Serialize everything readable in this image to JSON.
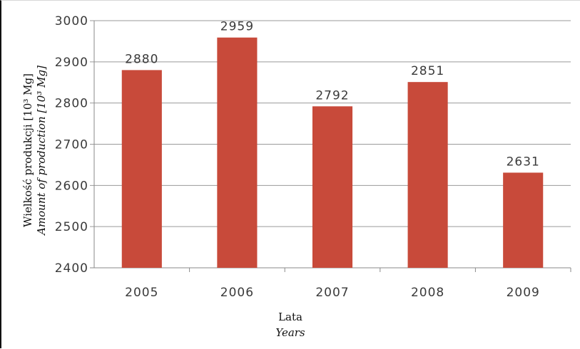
{
  "chart_data": {
    "type": "bar",
    "categories": [
      "2005",
      "2006",
      "2007",
      "2008",
      "2009"
    ],
    "values": [
      2880,
      2959,
      2792,
      2851,
      2631
    ],
    "data_labels": [
      "2880",
      "2959",
      "2792",
      "2851",
      "2631"
    ],
    "ylim": [
      2400,
      3000
    ],
    "yticks": [
      "2400",
      "2500",
      "2600",
      "2700",
      "2800",
      "2900",
      "3000"
    ],
    "ylabel": "Wielkość produkcji [10³ Mg]",
    "ylabel_en": "Amount of production [10³ Mg]",
    "xlabel": "Lata",
    "xlabel_en": "Years",
    "grid": true,
    "bar_color": "#c84a3a"
  }
}
